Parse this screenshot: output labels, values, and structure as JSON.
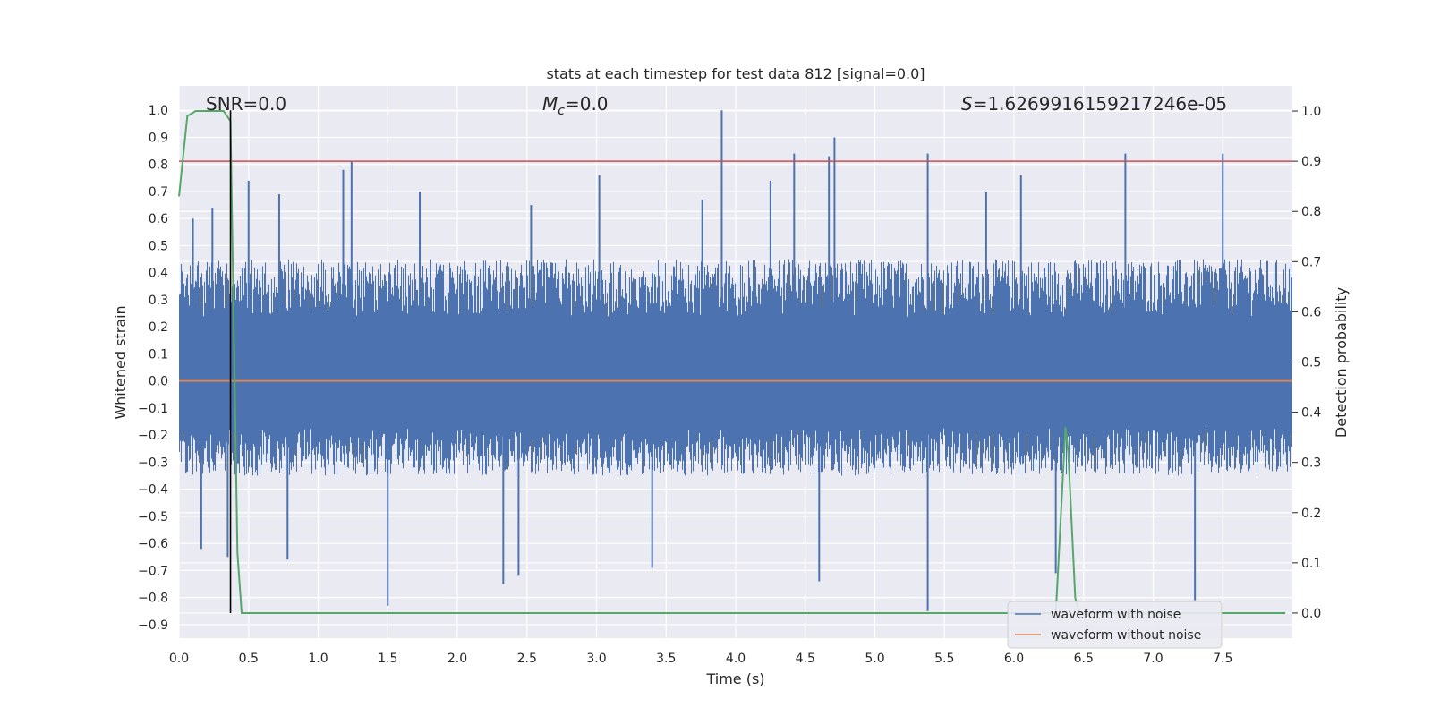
{
  "chart_data": {
    "type": "line",
    "title": "stats at each timestep for test data 812 [signal=0.0]",
    "xlabel": "Time (s)",
    "ylabel": "Whitened strain",
    "y2label": "Detection probability",
    "xlim": [
      0.0,
      8.0
    ],
    "ylim": [
      -0.95,
      1.09
    ],
    "y2lim": [
      -0.05,
      1.05
    ],
    "xticks": [
      "0.0",
      "0.5",
      "1.0",
      "1.5",
      "2.0",
      "2.5",
      "3.0",
      "3.5",
      "4.0",
      "4.5",
      "5.0",
      "5.5",
      "6.0",
      "6.5",
      "7.0",
      "7.5"
    ],
    "yticks": [
      "1.0",
      "0.9",
      "0.8",
      "0.7",
      "0.6",
      "0.5",
      "0.4",
      "0.3",
      "0.2",
      "0.1",
      "0.0",
      "-0.1",
      "-0.2",
      "-0.3",
      "-0.4",
      "-0.5",
      "-0.6",
      "-0.7",
      "-0.8",
      "-0.9"
    ],
    "y2ticks": [
      "1.0",
      "0.9",
      "0.8",
      "0.7",
      "0.6",
      "0.5",
      "0.4",
      "0.3",
      "0.2",
      "0.1",
      "0.0"
    ],
    "annotations": {
      "snr": "SNR=0.0",
      "mc_symbol": "M",
      "mc_sub": "c",
      "mc_value": "=0.0",
      "s_symbol": "S",
      "s_value": "=1.6269916159217246e-05"
    },
    "legend": {
      "position": "lower right",
      "entries": [
        "waveform with noise",
        "waveform without noise"
      ]
    },
    "colors": {
      "noise": "#4c72b0",
      "clean": "#dd8452",
      "probability": "#55a868",
      "threshold": "#c44e52",
      "marker": "#000000",
      "plot_bg": "#eaeaf2",
      "grid": "#ffffff"
    },
    "threshold_probability": 0.9,
    "marker_time": 0.37,
    "series": [
      {
        "name": "waveform with noise",
        "axis": "left",
        "typical_range": [
          -0.35,
          0.45
        ],
        "peaks": [
          {
            "x": 0.1,
            "y": 0.6
          },
          {
            "x": 0.16,
            "y": -0.62
          },
          {
            "x": 0.24,
            "y": 0.64
          },
          {
            "x": 0.35,
            "y": -0.65
          },
          {
            "x": 0.5,
            "y": 0.74
          },
          {
            "x": 0.72,
            "y": 0.69
          },
          {
            "x": 0.78,
            "y": -0.66
          },
          {
            "x": 1.18,
            "y": 0.78
          },
          {
            "x": 1.24,
            "y": 0.81
          },
          {
            "x": 1.5,
            "y": -0.83
          },
          {
            "x": 1.73,
            "y": 0.7
          },
          {
            "x": 2.33,
            "y": -0.75
          },
          {
            "x": 2.44,
            "y": -0.72
          },
          {
            "x": 2.53,
            "y": 0.65
          },
          {
            "x": 3.02,
            "y": 0.76
          },
          {
            "x": 3.4,
            "y": -0.69
          },
          {
            "x": 3.76,
            "y": 0.67
          },
          {
            "x": 3.9,
            "y": 1.0
          },
          {
            "x": 4.25,
            "y": 0.74
          },
          {
            "x": 4.42,
            "y": 0.84
          },
          {
            "x": 4.6,
            "y": -0.74
          },
          {
            "x": 4.67,
            "y": 0.83
          },
          {
            "x": 4.71,
            "y": 0.9
          },
          {
            "x": 5.38,
            "y": 0.84
          },
          {
            "x": 5.38,
            "y": -0.85
          },
          {
            "x": 5.8,
            "y": 0.7
          },
          {
            "x": 6.05,
            "y": 0.76
          },
          {
            "x": 6.3,
            "y": -0.71
          },
          {
            "x": 6.8,
            "y": 0.84
          },
          {
            "x": 7.3,
            "y": -0.81
          },
          {
            "x": 7.5,
            "y": 0.84
          }
        ]
      },
      {
        "name": "waveform without noise",
        "axis": "left",
        "x": [
          0.0,
          8.0
        ],
        "y": [
          0.0,
          0.0
        ]
      },
      {
        "name": "detection probability",
        "axis": "right",
        "x": [
          0.0,
          0.06,
          0.12,
          0.24,
          0.32,
          0.37,
          0.42,
          0.45,
          6.3,
          6.37,
          6.39,
          6.44,
          6.47,
          7.95
        ],
        "y": [
          0.83,
          0.99,
          1.0,
          1.0,
          1.0,
          0.98,
          0.12,
          0.0,
          0.0,
          0.37,
          0.32,
          0.03,
          0.0,
          0.0
        ]
      }
    ]
  }
}
